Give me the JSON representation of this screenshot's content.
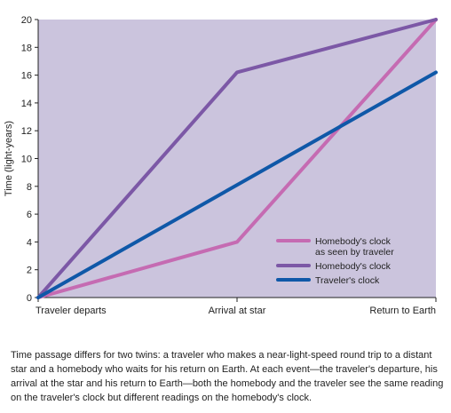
{
  "chart_data": {
    "type": "line",
    "title": "",
    "xlabel": "",
    "ylabel": "Time (light-years)",
    "categories": [
      "Traveler departs",
      "Arrival at star",
      "Return to Earth"
    ],
    "ylim": [
      0,
      20
    ],
    "yticks": [
      0,
      2,
      4,
      6,
      8,
      10,
      12,
      14,
      16,
      18,
      20
    ],
    "grid": false,
    "legend_position": "bottom-right",
    "background_color": "#cbc4dd",
    "series": [
      {
        "name": "Homebody's clock as seen by traveler",
        "name_lines": [
          "Homebody's clock",
          "as seen by traveler"
        ],
        "values": [
          0,
          4,
          20
        ],
        "color": "#c56bb2"
      },
      {
        "name": "Homebody's clock",
        "name_lines": [
          "Homebody's clock"
        ],
        "values": [
          0,
          16.2,
          20
        ],
        "color": "#7c58a6"
      },
      {
        "name": "Traveler's clock",
        "name_lines": [
          "Traveler's clock"
        ],
        "values": [
          0,
          8.1,
          16.2
        ],
        "color": "#0f58a8"
      }
    ]
  },
  "caption": "Time passage differs for two twins: a traveler who makes a near-light-speed round trip to a distant star and a homebody who waits for his return on Earth. At each event—the traveler's departure, his arrival at the star and his return to Earth—both the homebody and the traveler see the same reading on the traveler's clock but different readings on the homebody's clock."
}
